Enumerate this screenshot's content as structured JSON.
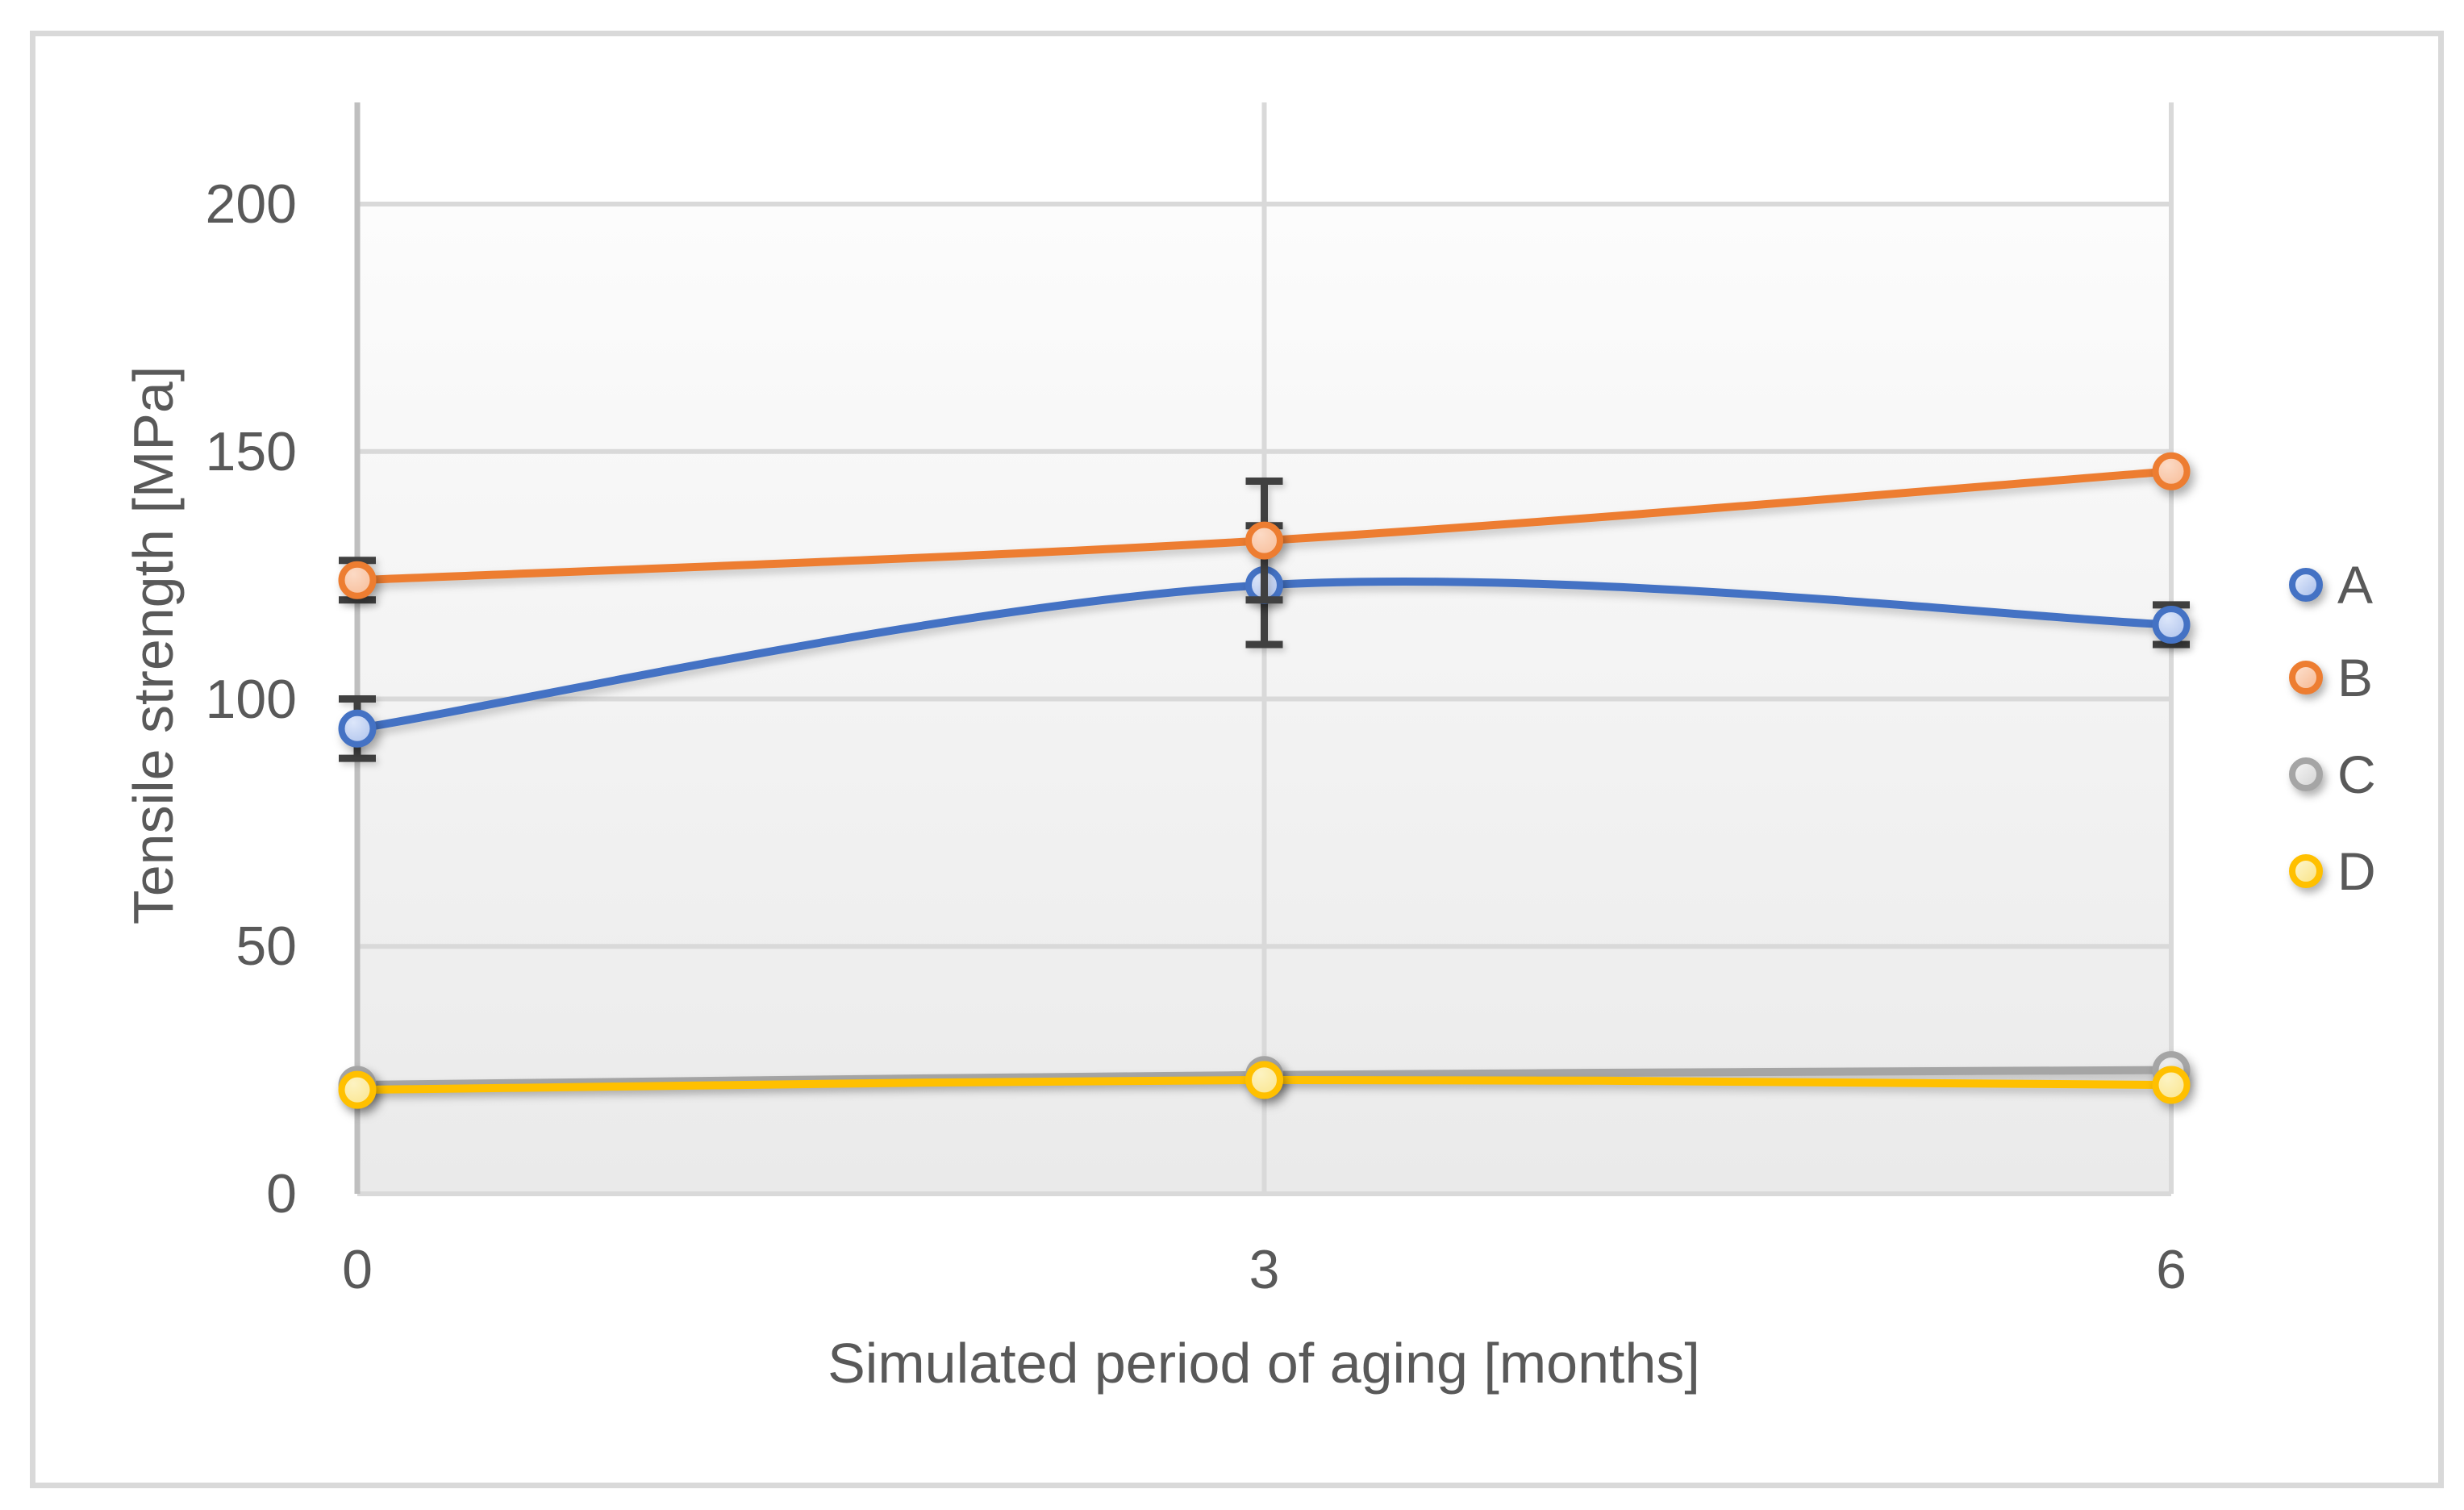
{
  "figure": {
    "border_color": "#D9D9D9",
    "background_color": "#FFFFFF",
    "plot_bg_top": "#FCFCFC",
    "plot_bg_bottom": "#EAEAEA",
    "gridline_color": "#D9D9D9",
    "axis_line_color": "#BFBFBF",
    "text_color": "#595959",
    "error_bar_color": "#404040"
  },
  "chart_data": {
    "type": "line",
    "title": "",
    "xlabel": "Simulated period of aging [months]",
    "ylabel": "Tensile strength [MPa]",
    "x": [
      0,
      3,
      6
    ],
    "x_tick_labels": [
      "0",
      "3",
      "6"
    ],
    "y_ticks": [
      0,
      50,
      100,
      150,
      200
    ],
    "y_tick_labels": [
      "0",
      "50",
      "100",
      "150",
      "200"
    ],
    "ylim": [
      0,
      220
    ],
    "grid": true,
    "smooth_lines": true,
    "legend_position": "right",
    "series": [
      {
        "name": "A",
        "color": "#4472C4",
        "fill_light": "#DCE6FA",
        "fill_dark": "#AFC3EC",
        "values": [
          94,
          123,
          115
        ],
        "errors": [
          6,
          12,
          4
        ]
      },
      {
        "name": "B",
        "color": "#ED7D31",
        "fill_light": "#FCDAC5",
        "fill_dark": "#F7BD99",
        "values": [
          124,
          132,
          146
        ],
        "errors": [
          4,
          12,
          0
        ]
      },
      {
        "name": "C",
        "color": "#A5A5A5",
        "fill_light": "#EFEFEF",
        "fill_dark": "#D8D8D8",
        "values": [
          22,
          24,
          25
        ],
        "errors": [
          0,
          0,
          0
        ]
      },
      {
        "name": "D",
        "color": "#FFC000",
        "fill_light": "#FDF3C2",
        "fill_dark": "#FAE58E",
        "values": [
          21,
          23,
          22
        ],
        "errors": [
          0,
          0,
          0
        ]
      }
    ]
  }
}
